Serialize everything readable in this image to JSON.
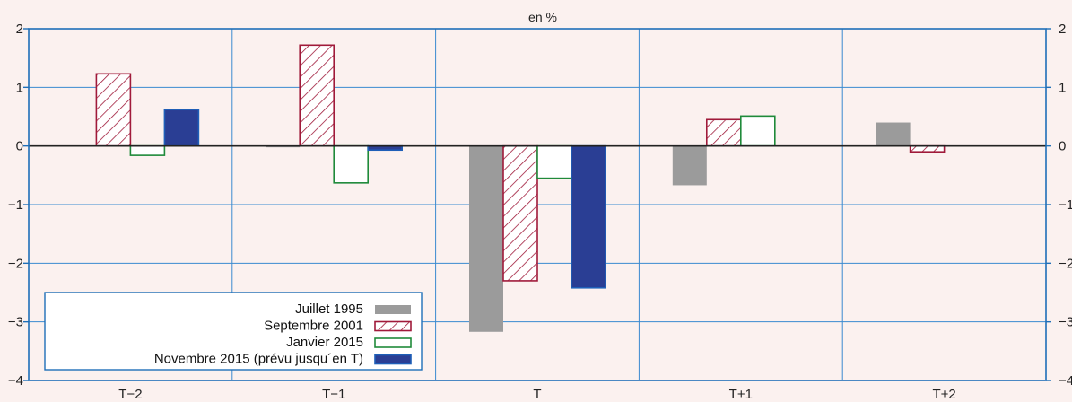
{
  "colors": {
    "background": "#fbf1ef",
    "frame": "#1f6fb8",
    "grid": "#3a8ad0",
    "title": "#b0003a",
    "zero_line": "#222222",
    "juillet": "#9b9b9b",
    "septembre": "#a01a3a",
    "janvier": "#1f8a3a",
    "novembre": "#2a3e94",
    "novembre_edge": "#1f5fb8"
  },
  "chart_data": {
    "type": "bar",
    "title": "",
    "subtitle": "en %",
    "categories": [
      "T−2",
      "T−1",
      "T",
      "T+1",
      "T+2"
    ],
    "ylim": [
      -4,
      2
    ],
    "yticks": [
      2,
      1,
      0,
      -1,
      -2,
      -3,
      -4
    ],
    "ytick_labels": [
      "2",
      "1",
      "0",
      "−1",
      "−2",
      "−3",
      "−4"
    ],
    "ytick_labels_right": [
      "2",
      "1",
      "0",
      "−1",
      "−2",
      "−3",
      "−4"
    ],
    "grid": true,
    "legend_position": "bottom-left",
    "series": [
      {
        "name": "Juillet 1995",
        "style": "solid-grey",
        "values": [
          null,
          -0.02,
          -3.17,
          -0.67,
          0.4
        ]
      },
      {
        "name": "Septembre 2001",
        "style": "hatched",
        "values": [
          1.23,
          1.72,
          -2.3,
          0.45,
          -0.1
        ]
      },
      {
        "name": "Janvier 2015",
        "style": "outline",
        "values": [
          -0.16,
          -0.63,
          -0.55,
          0.51,
          null
        ]
      },
      {
        "name": "Novembre 2015 (prévu jusqu´en T)",
        "style": "solid-blue",
        "values": [
          0.62,
          -0.07,
          -2.42,
          null,
          null
        ]
      }
    ]
  }
}
